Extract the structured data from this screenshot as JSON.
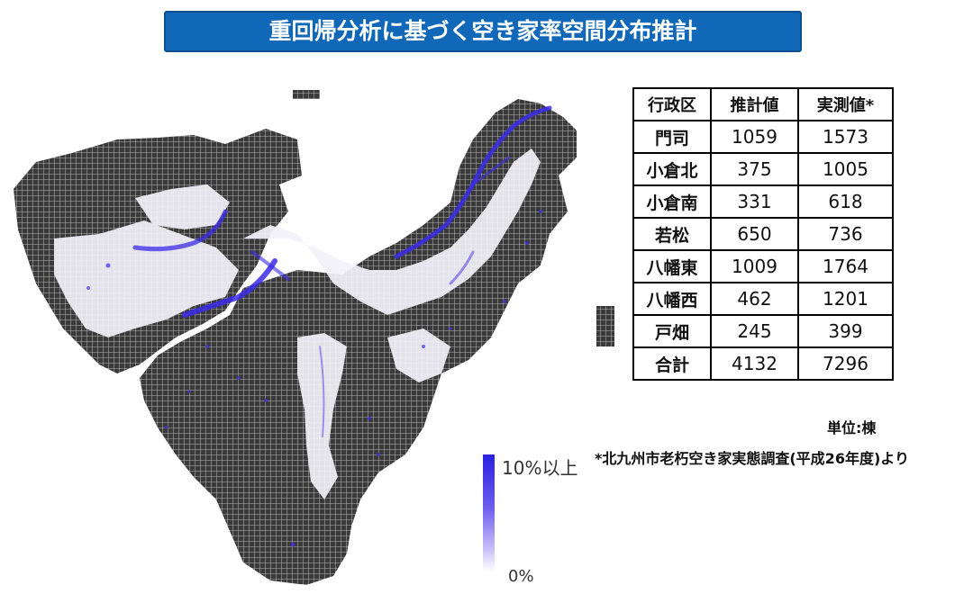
{
  "title": "重回帰分析に基づく空き家率空間分布推計",
  "table": {
    "headers": [
      "行政区",
      "推計値",
      "実測値*"
    ],
    "rows": [
      {
        "region": "門司",
        "estimate": "1059",
        "measured": "1573"
      },
      {
        "region": "小倉北",
        "estimate": "375",
        "measured": "1005"
      },
      {
        "region": "小倉南",
        "estimate": "331",
        "measured": "618"
      },
      {
        "region": "若松",
        "estimate": "650",
        "measured": "736"
      },
      {
        "region": "八幡東",
        "estimate": "1009",
        "measured": "1764"
      },
      {
        "region": "八幡西",
        "estimate": "462",
        "measured": "1201"
      },
      {
        "region": "戸畑",
        "estimate": "245",
        "measured": "399"
      },
      {
        "region": "合計",
        "estimate": "4132",
        "measured": "7296"
      }
    ]
  },
  "unit": "単位:棟",
  "source_note": "*北九州市老朽空き家実態調査(平成26年度)より",
  "legend": {
    "max_label": "10%以上",
    "min_label": "0%",
    "color_high": "#2a1fe0",
    "color_low": "#ffffff"
  },
  "colors": {
    "banner": "#1168b8",
    "land_grid": "#3a3a3a",
    "urban_white": "#f4f2fa",
    "vacancy": "#3b2be8"
  }
}
